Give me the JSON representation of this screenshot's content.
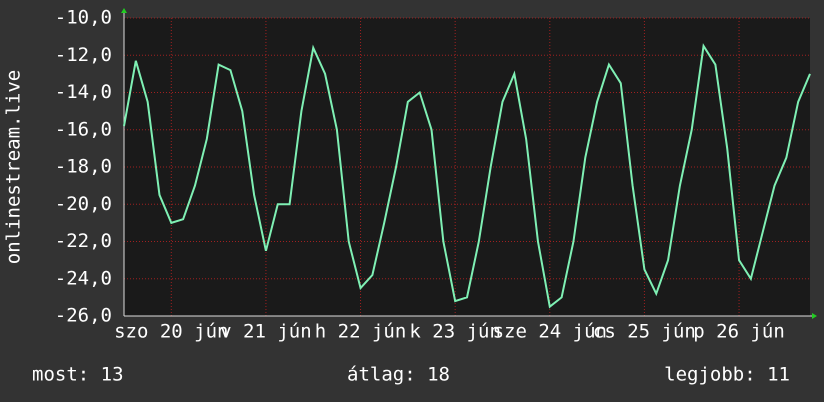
{
  "chart_data": {
    "type": "line",
    "y_label": "onlinestream.live",
    "x": [
      0,
      3,
      6,
      9,
      12,
      15,
      18,
      21,
      24,
      27,
      30,
      33,
      36,
      39,
      42,
      45,
      48,
      51,
      54,
      57,
      60,
      63,
      66,
      69,
      72,
      75,
      78,
      81,
      84,
      87,
      90,
      93,
      96,
      99,
      102,
      105,
      108,
      111,
      114,
      117,
      120,
      123,
      126,
      129,
      132,
      135,
      138,
      141,
      144,
      147,
      150,
      153,
      156,
      159,
      162,
      165,
      168,
      171,
      174
    ],
    "series": [
      {
        "color": "#7ff0b4",
        "values": [
          -15.8,
          -12.3,
          -14.5,
          -19.5,
          -21,
          -20.8,
          -19,
          -16.5,
          -12.5,
          -12.8,
          -15,
          -19.5,
          -22.5,
          -20,
          -20,
          -15,
          -11.6,
          -13,
          -16,
          -22,
          -24.5,
          -23.8,
          -21,
          -18,
          -14.5,
          -14,
          -16,
          -22,
          -25.2,
          -25,
          -22,
          -18,
          -14.5,
          -13,
          -16.5,
          -22,
          -25.5,
          -25,
          -22,
          -17.5,
          -14.5,
          -12.5,
          -13.5,
          -19,
          -23.5,
          -24.8,
          -23,
          -19,
          -16,
          -11.5,
          -12.5,
          -17,
          -23,
          -24,
          -21.5,
          -19,
          -17.5,
          -14.5,
          -13
        ]
      }
    ],
    "xlim": [
      0,
      174
    ],
    "xticks": [
      {
        "value": 12,
        "label": "szo 20 jún"
      },
      {
        "value": 36,
        "label": "v 21 jún"
      },
      {
        "value": 60,
        "label": "h 22 jún"
      },
      {
        "value": 84,
        "label": "k 23 jún"
      },
      {
        "value": 108,
        "label": "sze 24 jún"
      },
      {
        "value": 132,
        "label": "cs 25 jún"
      },
      {
        "value": 156,
        "label": "p 26 jún"
      }
    ],
    "ylim": [
      -26,
      -10
    ],
    "yticks": [
      {
        "value": -10,
        "label": "-10,0"
      },
      {
        "value": -12,
        "label": "-12,0"
      },
      {
        "value": -14,
        "label": "-14,0"
      },
      {
        "value": -16,
        "label": "-16,0"
      },
      {
        "value": -18,
        "label": "-18,0"
      },
      {
        "value": -20,
        "label": "-20,0"
      },
      {
        "value": -22,
        "label": "-22,0"
      },
      {
        "value": -24,
        "label": "-24,0"
      },
      {
        "value": -26,
        "label": "-26,0"
      }
    ],
    "grid": true
  },
  "footer": [
    "most: 13",
    "átlag: 18",
    "legjobb: 11"
  ]
}
